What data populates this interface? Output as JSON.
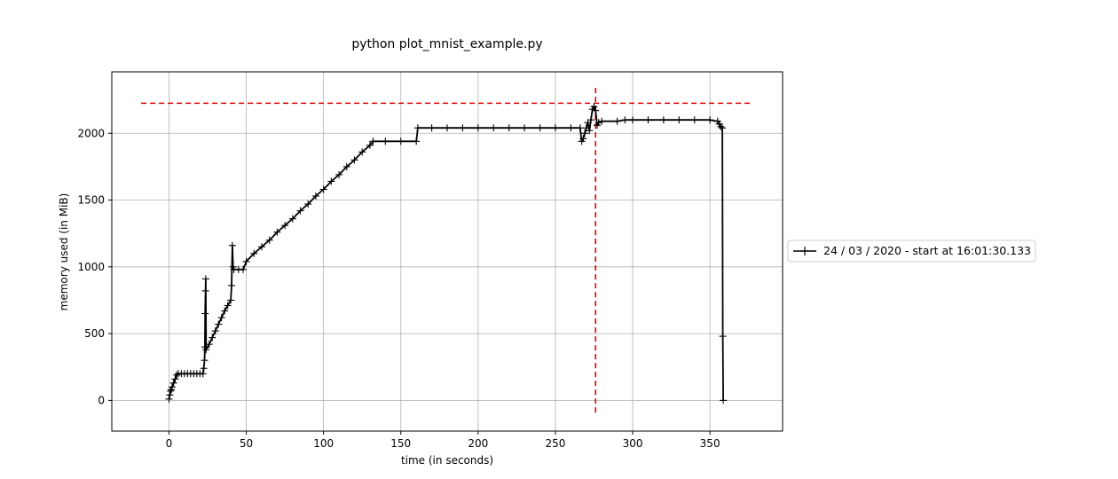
{
  "chart_data": {
    "type": "line",
    "title": "python plot_mnist_example.py",
    "xlabel": "time (in seconds)",
    "ylabel": "memory used (in MiB)",
    "xlim": [
      -37,
      397
    ],
    "ylim": [
      -230,
      2460
    ],
    "x_ticks": [
      0,
      50,
      100,
      150,
      200,
      250,
      300,
      350
    ],
    "y_ticks": [
      0,
      500,
      1000,
      1500,
      2000
    ],
    "grid": true,
    "legend_position": "right",
    "series": [
      {
        "name": "24 / 03 / 2020 - start at 16:01:30.133",
        "color": "#000000",
        "marker": "+",
        "points": [
          [
            0,
            10
          ],
          [
            0.5,
            40
          ],
          [
            1,
            70
          ],
          [
            1.5,
            80
          ],
          [
            2,
            100
          ],
          [
            3,
            130
          ],
          [
            4,
            160
          ],
          [
            5,
            190
          ],
          [
            6,
            200
          ],
          [
            8,
            200
          ],
          [
            10,
            200
          ],
          [
            12,
            200
          ],
          [
            14,
            200
          ],
          [
            16,
            200
          ],
          [
            18,
            200
          ],
          [
            20,
            200
          ],
          [
            22,
            200
          ],
          [
            22.5,
            240
          ],
          [
            23,
            300
          ],
          [
            23.2,
            400
          ],
          [
            23.4,
            650
          ],
          [
            23.6,
            820
          ],
          [
            23.8,
            910
          ],
          [
            24,
            380
          ],
          [
            26,
            420
          ],
          [
            28,
            470
          ],
          [
            30,
            520
          ],
          [
            32,
            570
          ],
          [
            34,
            620
          ],
          [
            36,
            670
          ],
          [
            38,
            710
          ],
          [
            40,
            750
          ],
          [
            40.5,
            860
          ],
          [
            41,
            1160
          ],
          [
            41.5,
            1000
          ],
          [
            42,
            980
          ],
          [
            45,
            980
          ],
          [
            48,
            980
          ],
          [
            50,
            1040
          ],
          [
            55,
            1100
          ],
          [
            60,
            1150
          ],
          [
            65,
            1200
          ],
          [
            70,
            1260
          ],
          [
            75,
            1310
          ],
          [
            80,
            1360
          ],
          [
            85,
            1420
          ],
          [
            90,
            1470
          ],
          [
            95,
            1530
          ],
          [
            100,
            1580
          ],
          [
            105,
            1640
          ],
          [
            110,
            1690
          ],
          [
            115,
            1750
          ],
          [
            120,
            1800
          ],
          [
            125,
            1860
          ],
          [
            130,
            1910
          ],
          [
            132,
            1940
          ],
          [
            140,
            1940
          ],
          [
            150,
            1940
          ],
          [
            160,
            1940
          ],
          [
            161,
            2040
          ],
          [
            170,
            2040
          ],
          [
            180,
            2040
          ],
          [
            190,
            2040
          ],
          [
            200,
            2040
          ],
          [
            210,
            2040
          ],
          [
            220,
            2040
          ],
          [
            230,
            2040
          ],
          [
            240,
            2040
          ],
          [
            250,
            2040
          ],
          [
            260,
            2040
          ],
          [
            266,
            2040
          ],
          [
            267,
            1940
          ],
          [
            268,
            1960
          ],
          [
            269,
            2000
          ],
          [
            270,
            2040
          ],
          [
            271,
            2080
          ],
          [
            272,
            2020
          ],
          [
            273,
            2100
          ],
          [
            274,
            2180
          ],
          [
            275,
            2200
          ],
          [
            276,
            2170
          ],
          [
            277,
            2060
          ],
          [
            278,
            2080
          ],
          [
            280,
            2090
          ],
          [
            290,
            2090
          ],
          [
            295,
            2100
          ],
          [
            300,
            2100
          ],
          [
            310,
            2100
          ],
          [
            320,
            2100
          ],
          [
            330,
            2100
          ],
          [
            340,
            2100
          ],
          [
            350,
            2100
          ],
          [
            355,
            2090
          ],
          [
            356,
            2070
          ],
          [
            357,
            2050
          ],
          [
            358,
            2040
          ],
          [
            358.3,
            480
          ],
          [
            358.6,
            0
          ]
        ]
      }
    ],
    "reference_lines": [
      {
        "orientation": "horizontal",
        "value": 2225,
        "from": -18,
        "to": 378,
        "color": "#e00000",
        "style": "dashed"
      },
      {
        "orientation": "vertical",
        "value": 276,
        "from": -110,
        "to": 2340,
        "color": "#e00000",
        "style": "dashed"
      }
    ]
  }
}
